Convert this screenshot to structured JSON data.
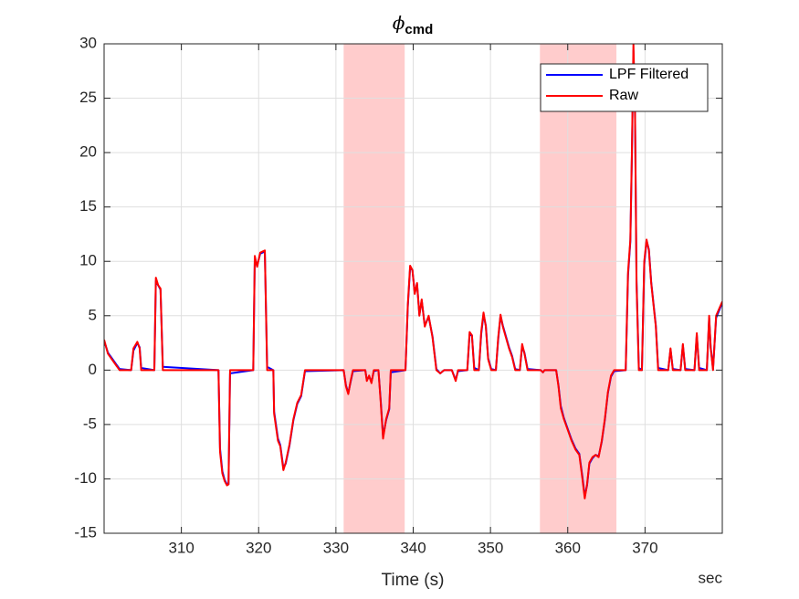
{
  "chart_data": {
    "type": "line",
    "title": {
      "symbol": "ϕ",
      "subscript": "cmd"
    },
    "xlabel": "Time (s)",
    "annotation": "sec",
    "xlim": [
      300,
      380
    ],
    "ylim": [
      -15,
      30
    ],
    "xticks": [
      310,
      320,
      330,
      340,
      350,
      360,
      370
    ],
    "yticks": [
      -15,
      -10,
      -5,
      0,
      5,
      10,
      15,
      20,
      25,
      30
    ],
    "grid": true,
    "legend": "northeast",
    "shaded_regions": [
      [
        331,
        338.9
      ],
      [
        356.4,
        366.3
      ]
    ],
    "shade_color": "#ffcccc",
    "x": [
      300,
      300.5,
      301,
      301.5,
      302,
      303.5,
      303.8,
      304.3,
      304.6,
      304.8,
      306.5,
      306.7,
      307,
      307.3,
      307.6,
      314.8,
      315,
      315.3,
      315.6,
      315.9,
      316.1,
      316.3,
      319.3,
      319.5,
      319.8,
      320.2,
      320.8,
      321.1,
      321.9,
      322,
      322.5,
      322.8,
      323.2,
      323.5,
      324,
      324.5,
      325,
      325.5,
      326,
      331,
      331.3,
      331.6,
      331.9,
      332.2,
      333.8,
      334,
      334.3,
      334.6,
      334.9,
      335.5,
      335.8,
      336.1,
      336.5,
      336.9,
      337.1,
      339,
      339.3,
      339.6,
      339.9,
      340.2,
      340.5,
      340.8,
      341.1,
      341.5,
      342,
      342.5,
      343,
      343.5,
      344,
      345,
      345.5,
      345.8,
      347,
      347.3,
      347.6,
      347.9,
      348.5,
      348.8,
      349.1,
      349.4,
      349.7,
      350.1,
      350.7,
      351,
      351.3,
      351.6,
      352,
      352.4,
      352.8,
      353.2,
      353.8,
      354.1,
      354.4,
      354.8,
      356.5,
      356.8,
      357,
      358.5,
      358.8,
      359.1,
      359.5,
      360,
      360.5,
      361,
      361.5,
      361.9,
      362.2,
      362.5,
      362.8,
      363.2,
      363.6,
      364,
      364.4,
      364.8,
      365.2,
      365.6,
      366,
      367.5,
      367.8,
      368.1,
      368.3,
      368.5,
      368.7,
      368.9,
      369.2,
      369.6,
      369.9,
      370.2,
      370.5,
      370.8,
      371.1,
      371.4,
      371.7,
      373,
      373.3,
      373.6,
      374.6,
      374.9,
      375.2,
      376.4,
      376.7,
      377,
      378,
      378.3,
      378.5,
      378.8,
      379.2,
      380
    ],
    "series": [
      {
        "name": "LPF Filtered",
        "color": "#0000ff",
        "values": [
          2.7,
          1.6,
          1.1,
          0.6,
          0.1,
          0,
          1.8,
          2.5,
          2.1,
          0.2,
          0,
          8.2,
          7.8,
          7.4,
          0.3,
          0,
          -7.2,
          -9.3,
          -10.1,
          -10.5,
          -10.5,
          -0.3,
          0,
          10.2,
          9.6,
          10.7,
          10.9,
          0.3,
          0,
          -3.8,
          -6.3,
          -6.9,
          -9.0,
          -8.6,
          -6.9,
          -4.6,
          -3.1,
          -2.4,
          -0.1,
          0,
          -1.4,
          -2.1,
          -1.1,
          -0.1,
          0,
          -0.9,
          -0.6,
          -1.1,
          -0.1,
          0,
          -2.8,
          -6.1,
          -4.6,
          -3.6,
          -0.2,
          0,
          5.8,
          9.4,
          9.2,
          7.1,
          7.9,
          5.1,
          6.4,
          4.1,
          4.9,
          3.1,
          0.1,
          -0.3,
          0,
          0,
          -0.9,
          -0.1,
          0,
          3.3,
          3.2,
          0.2,
          0,
          3.3,
          5.1,
          4.1,
          1.1,
          0.1,
          0,
          2.8,
          5.0,
          4.1,
          3.1,
          2.1,
          1.3,
          0.1,
          0,
          2.2,
          1.6,
          0.1,
          0,
          -0.2,
          0,
          0,
          -1.4,
          -3.3,
          -4.4,
          -5.4,
          -6.4,
          -7.2,
          -7.7,
          -9.8,
          -11.6,
          -10.6,
          -8.6,
          -8.1,
          -7.8,
          -7.9,
          -6.6,
          -4.6,
          -2.1,
          -0.6,
          -0.1,
          0,
          8.7,
          11.8,
          19.6,
          29.4,
          24.2,
          8.3,
          0.2,
          0,
          9.7,
          11.9,
          11.1,
          8.1,
          6.1,
          4.1,
          0.2,
          0,
          1.9,
          0.1,
          0,
          2.3,
          0.1,
          0,
          3.2,
          0.2,
          0,
          4.8,
          2.1,
          0.1,
          4.8,
          6.2
        ]
      },
      {
        "name": "Raw",
        "color": "#ff0000",
        "values": [
          2.8,
          1.5,
          1.0,
          0.5,
          0,
          0,
          2.0,
          2.6,
          2.0,
          0,
          0,
          8.5,
          7.8,
          7.5,
          0,
          0,
          -7.5,
          -9.5,
          -10.2,
          -10.6,
          -10.5,
          0,
          0,
          10.5,
          9.5,
          10.8,
          11.0,
          0,
          0,
          -4,
          -6.5,
          -7.0,
          -9.2,
          -8.5,
          -6.8,
          -4.5,
          -3,
          -2.3,
          0,
          0,
          -1.5,
          -2.2,
          -1,
          0,
          0,
          -1,
          -0.5,
          -1.2,
          0,
          0,
          -3,
          -6.3,
          -4.5,
          -3.5,
          0,
          0,
          6,
          9.6,
          9.2,
          7,
          8,
          5,
          6.5,
          4,
          5,
          3,
          0,
          -0.3,
          0,
          0,
          -1,
          0,
          0,
          3.5,
          3.2,
          0,
          0,
          3.5,
          5.3,
          4,
          1,
          0,
          0,
          3,
          5.1,
          4,
          3,
          2,
          1.2,
          0,
          0,
          2.4,
          1.5,
          0,
          0,
          -0.2,
          0,
          0,
          -1.5,
          -3.5,
          -4.5,
          -5.5,
          -6.5,
          -7.3,
          -7.8,
          -10.0,
          -11.8,
          -10.5,
          -8.5,
          -8.0,
          -7.8,
          -8.0,
          -6.5,
          -4.5,
          -2,
          -0.5,
          0,
          0,
          9,
          12,
          20,
          30,
          24,
          8,
          0,
          0,
          10,
          12,
          11,
          8,
          6,
          4,
          0,
          0,
          2.0,
          0,
          0,
          2.4,
          0,
          0,
          3.4,
          0,
          0,
          5,
          2,
          0,
          5,
          6.3
        ]
      }
    ]
  }
}
